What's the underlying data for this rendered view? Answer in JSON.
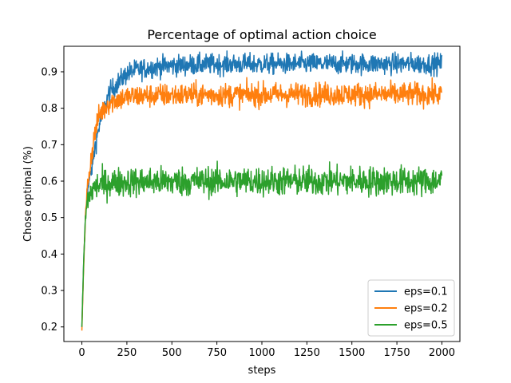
{
  "chart_data": {
    "type": "line",
    "title": "Percentage of optimal action choice",
    "xlabel": "steps",
    "ylabel": "Chose optimal (%)",
    "xlim": [
      -100,
      2100
    ],
    "ylim": [
      0.16,
      0.97
    ],
    "xticks": [
      0,
      250,
      500,
      750,
      1000,
      1250,
      1500,
      1750,
      2000
    ],
    "yticks": [
      0.2,
      0.3,
      0.4,
      0.5,
      0.6,
      0.7,
      0.8,
      0.9
    ],
    "grid": false,
    "legend_position": "lower-right",
    "series": [
      {
        "name": "eps=0.1",
        "color": "#1f77b4",
        "x": [
          0,
          10,
          20,
          30,
          50,
          75,
          100,
          150,
          200,
          250,
          300,
          400,
          500,
          600,
          750,
          1000,
          1250,
          1500,
          1750,
          2000
        ],
        "values": [
          0.2,
          0.38,
          0.5,
          0.57,
          0.62,
          0.7,
          0.76,
          0.84,
          0.87,
          0.895,
          0.905,
          0.913,
          0.917,
          0.919,
          0.921,
          0.921,
          0.922,
          0.922,
          0.922,
          0.922
        ],
        "noise": 0.014
      },
      {
        "name": "eps=0.2",
        "color": "#ff7f0e",
        "x": [
          0,
          10,
          20,
          30,
          50,
          75,
          100,
          150,
          200,
          250,
          300,
          400,
          500,
          750,
          1000,
          1250,
          1500,
          1750,
          2000
        ],
        "values": [
          0.19,
          0.37,
          0.5,
          0.58,
          0.66,
          0.74,
          0.785,
          0.815,
          0.825,
          0.83,
          0.833,
          0.835,
          0.836,
          0.837,
          0.837,
          0.838,
          0.838,
          0.838,
          0.838
        ],
        "noise": 0.016
      },
      {
        "name": "eps=0.5",
        "color": "#2ca02c",
        "x": [
          0,
          10,
          20,
          30,
          50,
          75,
          100,
          150,
          200,
          300,
          500,
          750,
          1000,
          1250,
          1500,
          1750,
          2000
        ],
        "values": [
          0.2,
          0.38,
          0.5,
          0.545,
          0.57,
          0.585,
          0.59,
          0.595,
          0.597,
          0.598,
          0.599,
          0.6,
          0.6,
          0.6,
          0.6,
          0.6,
          0.6
        ],
        "noise": 0.02
      }
    ]
  }
}
